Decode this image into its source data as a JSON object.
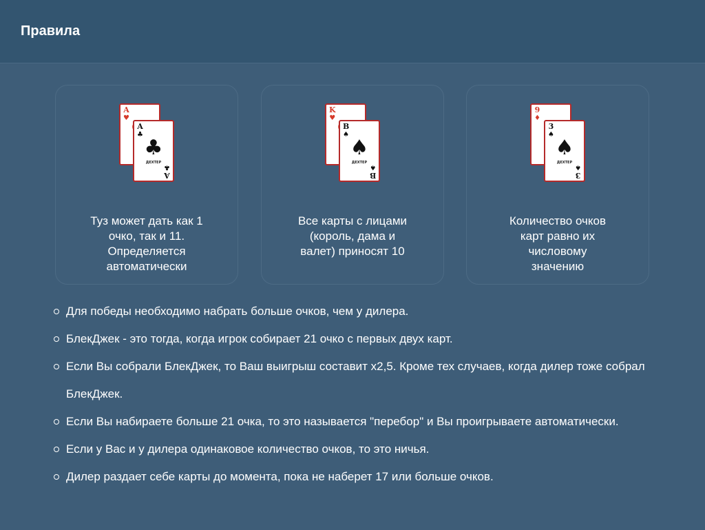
{
  "header": {
    "title": "Правила"
  },
  "cards": [
    {
      "text": "Туз может дать как 1 очко, так и 11. Определяется автоматически",
      "back": {
        "rank": "A",
        "suit": "♥",
        "color": "#d63a2a",
        "center": "♥"
      },
      "front": {
        "rank": "A",
        "suit": "♣",
        "color": "#111111",
        "center": "♣",
        "brand": "ДЕХТЕР"
      }
    },
    {
      "text": "Все карты с лицами (король, дама и валет) приносят 10",
      "back": {
        "rank": "K",
        "suit": "♥",
        "color": "#d63a2a",
        "center": "♥"
      },
      "front": {
        "rank": "В",
        "suit": "♠",
        "color": "#111111",
        "center": "♠",
        "brand": "ДЕХТЕР"
      }
    },
    {
      "text": "Количество очков карт равно их числовому значению",
      "back": {
        "rank": "9",
        "suit": "♦",
        "color": "#d63a2a",
        "center": "♦"
      },
      "front": {
        "rank": "3",
        "suit": "♠",
        "color": "#111111",
        "center": "♠",
        "brand": "ДЕХТЕР"
      }
    }
  ],
  "rules": [
    "Для победы необходимо набрать больше очков, чем у дилера.",
    "БлекДжек - это тогда, когда игрок собирает 21 очко с первых двух карт.",
    "Если Вы собрали БлекДжек, то Ваш выигрыш составит x2,5. Кроме тех случаев, когда дилер тоже собрал БлекДжек.",
    "Если Вы набираете больше 21 очка, то это называется \"перебор\" и Вы проигрываете автоматически.",
    "Если у Вас и у дилера одинаковое количество очков, то это ничья.",
    "Дилер раздает себе карты до момента, пока не наберет 17 или больше очков."
  ]
}
